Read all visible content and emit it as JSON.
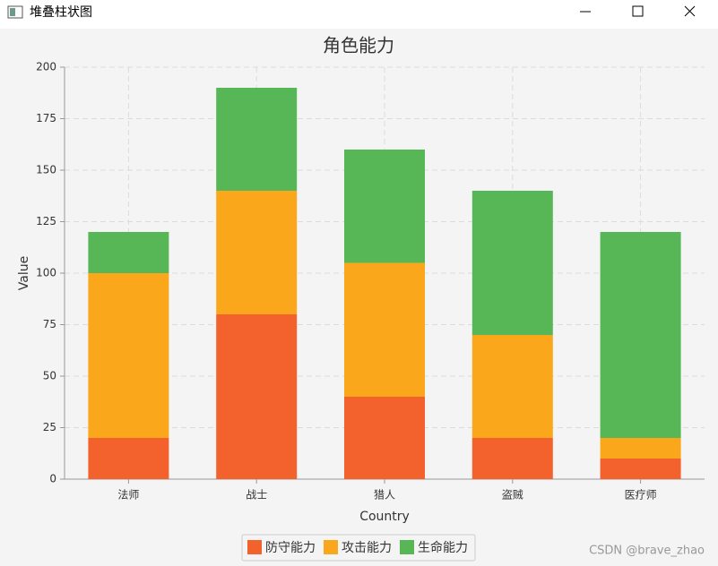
{
  "window": {
    "title": "堆叠柱状图"
  },
  "watermark": "CSDN @brave_zhao",
  "chart_data": {
    "type": "stacked_bar",
    "title": "角色能力",
    "x_label": "Country",
    "y_label": "Value",
    "categories": [
      "法师",
      "战士",
      "猎人",
      "盗贼",
      "医疗师"
    ],
    "series": [
      {
        "name": "防守能力",
        "color": "#f3622d",
        "values": [
          20,
          80,
          40,
          20,
          10
        ]
      },
      {
        "name": "攻击能力",
        "color": "#fba71b",
        "values": [
          80,
          60,
          65,
          50,
          10
        ]
      },
      {
        "name": "生命能力",
        "color": "#57b757",
        "values": [
          20,
          50,
          55,
          70,
          100
        ]
      }
    ],
    "ylim": [
      0,
      200
    ],
    "yticks": [
      0,
      25,
      50,
      75,
      100,
      125,
      150,
      175,
      200
    ],
    "grid": true,
    "legend": "bottom"
  }
}
